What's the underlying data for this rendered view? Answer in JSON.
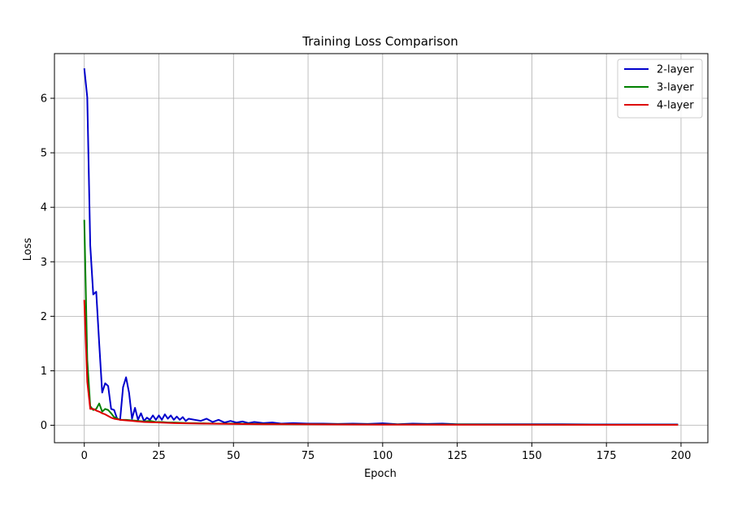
{
  "chart_data": {
    "type": "line",
    "title": "Training Loss Comparison",
    "xlabel": "Epoch",
    "ylabel": "Loss",
    "xlim": [
      -10,
      209
    ],
    "ylim": [
      -0.32,
      6.82
    ],
    "xticks": [
      0,
      25,
      50,
      75,
      100,
      125,
      150,
      175,
      200
    ],
    "yticks": [
      0,
      1,
      2,
      3,
      4,
      5,
      6
    ],
    "grid": true,
    "legend_position": "top-right",
    "series": [
      {
        "name": "2-layer",
        "color": "#0000cc",
        "points": [
          [
            0,
            6.55
          ],
          [
            1,
            6.02
          ],
          [
            2,
            3.3
          ],
          [
            3,
            2.4
          ],
          [
            4,
            2.45
          ],
          [
            5,
            1.5
          ],
          [
            6,
            0.6
          ],
          [
            7,
            0.77
          ],
          [
            8,
            0.72
          ],
          [
            9,
            0.3
          ],
          [
            10,
            0.28
          ],
          [
            11,
            0.12
          ],
          [
            12,
            0.1
          ],
          [
            13,
            0.7
          ],
          [
            14,
            0.88
          ],
          [
            15,
            0.6
          ],
          [
            16,
            0.12
          ],
          [
            17,
            0.32
          ],
          [
            18,
            0.1
          ],
          [
            19,
            0.22
          ],
          [
            20,
            0.08
          ],
          [
            21,
            0.14
          ],
          [
            22,
            0.1
          ],
          [
            23,
            0.18
          ],
          [
            24,
            0.1
          ],
          [
            25,
            0.18
          ],
          [
            26,
            0.1
          ],
          [
            27,
            0.2
          ],
          [
            28,
            0.12
          ],
          [
            29,
            0.18
          ],
          [
            30,
            0.1
          ],
          [
            31,
            0.16
          ],
          [
            32,
            0.1
          ],
          [
            33,
            0.15
          ],
          [
            34,
            0.08
          ],
          [
            35,
            0.12
          ],
          [
            37,
            0.1
          ],
          [
            39,
            0.08
          ],
          [
            41,
            0.12
          ],
          [
            43,
            0.06
          ],
          [
            45,
            0.1
          ],
          [
            47,
            0.05
          ],
          [
            49,
            0.08
          ],
          [
            51,
            0.05
          ],
          [
            53,
            0.07
          ],
          [
            55,
            0.04
          ],
          [
            57,
            0.06
          ],
          [
            60,
            0.04
          ],
          [
            63,
            0.05
          ],
          [
            66,
            0.03
          ],
          [
            70,
            0.04
          ],
          [
            75,
            0.03
          ],
          [
            80,
            0.03
          ],
          [
            85,
            0.025
          ],
          [
            90,
            0.03
          ],
          [
            95,
            0.025
          ],
          [
            100,
            0.035
          ],
          [
            105,
            0.02
          ],
          [
            110,
            0.03
          ],
          [
            115,
            0.025
          ],
          [
            120,
            0.03
          ],
          [
            125,
            0.02
          ],
          [
            130,
            0.02
          ],
          [
            140,
            0.02
          ],
          [
            150,
            0.02
          ],
          [
            160,
            0.02
          ],
          [
            170,
            0.015
          ],
          [
            180,
            0.015
          ],
          [
            190,
            0.015
          ],
          [
            199,
            0.015
          ]
        ]
      },
      {
        "name": "3-layer",
        "color": "#008000",
        "points": [
          [
            0,
            3.77
          ],
          [
            1,
            1.2
          ],
          [
            2,
            0.35
          ],
          [
            3,
            0.28
          ],
          [
            4,
            0.3
          ],
          [
            5,
            0.4
          ],
          [
            6,
            0.25
          ],
          [
            7,
            0.3
          ],
          [
            8,
            0.28
          ],
          [
            9,
            0.22
          ],
          [
            10,
            0.15
          ],
          [
            12,
            0.1
          ],
          [
            14,
            0.1
          ],
          [
            16,
            0.09
          ],
          [
            18,
            0.08
          ],
          [
            20,
            0.07
          ],
          [
            22,
            0.08
          ],
          [
            24,
            0.06
          ],
          [
            26,
            0.06
          ],
          [
            28,
            0.05
          ],
          [
            30,
            0.05
          ],
          [
            35,
            0.04
          ],
          [
            40,
            0.035
          ],
          [
            45,
            0.03
          ],
          [
            50,
            0.03
          ],
          [
            60,
            0.025
          ],
          [
            70,
            0.02
          ],
          [
            80,
            0.02
          ],
          [
            100,
            0.015
          ],
          [
            125,
            0.015
          ],
          [
            150,
            0.012
          ],
          [
            175,
            0.01
          ],
          [
            199,
            0.01
          ]
        ]
      },
      {
        "name": "4-layer",
        "color": "#dd0000",
        "points": [
          [
            0,
            2.3
          ],
          [
            1,
            0.8
          ],
          [
            2,
            0.3
          ],
          [
            3,
            0.3
          ],
          [
            4,
            0.27
          ],
          [
            5,
            0.25
          ],
          [
            6,
            0.22
          ],
          [
            7,
            0.2
          ],
          [
            8,
            0.17
          ],
          [
            9,
            0.14
          ],
          [
            10,
            0.12
          ],
          [
            12,
            0.1
          ],
          [
            14,
            0.09
          ],
          [
            16,
            0.08
          ],
          [
            18,
            0.07
          ],
          [
            20,
            0.06
          ],
          [
            25,
            0.05
          ],
          [
            30,
            0.04
          ],
          [
            40,
            0.03
          ],
          [
            50,
            0.025
          ],
          [
            60,
            0.02
          ],
          [
            70,
            0.02
          ],
          [
            80,
            0.015
          ],
          [
            100,
            0.012
          ],
          [
            125,
            0.01
          ],
          [
            150,
            0.01
          ],
          [
            175,
            0.008
          ],
          [
            199,
            0.008
          ]
        ]
      }
    ]
  }
}
